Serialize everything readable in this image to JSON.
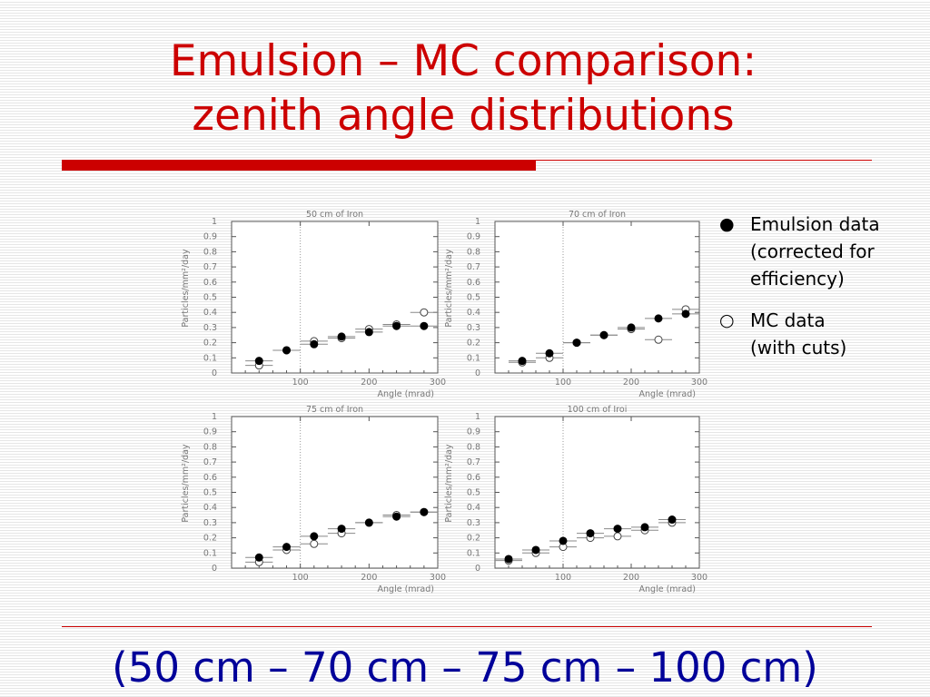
{
  "slide": {
    "title_line1": "Emulsion – MC comparison:",
    "title_line2": "zenith angle distributions",
    "subtitle": "(50 cm – 70 cm – 75 cm – 100 cm)"
  },
  "legend": {
    "items": [
      {
        "marker": "●",
        "lines": [
          "Emulsion data",
          "(corrected for",
          "efficiency)"
        ]
      },
      {
        "marker": "○",
        "lines": [
          "MC data",
          "(with cuts)"
        ]
      }
    ]
  },
  "colors": {
    "title": "#cc0000",
    "accent_bar": "#cc0000",
    "subtitle": "#000099"
  },
  "chart_data": [
    {
      "type": "scatter",
      "title": "50 cm of Iron",
      "xlabel": "Angle (mrad)",
      "ylabel": "Particles/mm²/day",
      "xlim": [
        0,
        300
      ],
      "ylim": [
        0,
        1
      ],
      "xticks": [
        100,
        200,
        300
      ],
      "yticks": [
        0,
        0.1,
        0.2,
        0.3,
        0.4,
        0.5,
        0.6,
        0.7,
        0.8,
        0.9,
        1
      ],
      "x_error": 20,
      "series": [
        {
          "name": "Emulsion data",
          "marker": "filled",
          "x": [
            40,
            80,
            120,
            160,
            200,
            240,
            280
          ],
          "y": [
            0.08,
            0.15,
            0.19,
            0.24,
            0.27,
            0.31,
            0.31
          ]
        },
        {
          "name": "MC data",
          "marker": "open",
          "x": [
            40,
            80,
            120,
            160,
            200,
            240,
            280
          ],
          "y": [
            0.05,
            0.15,
            0.21,
            0.23,
            0.29,
            0.32,
            0.4
          ]
        }
      ]
    },
    {
      "type": "scatter",
      "title": "70 cm of Iron",
      "xlabel": "Angle (mrad)",
      "ylabel": "Particles/mm²/day",
      "xlim": [
        0,
        300
      ],
      "ylim": [
        0,
        1
      ],
      "xticks": [
        100,
        200,
        300
      ],
      "yticks": [
        0,
        0.1,
        0.2,
        0.3,
        0.4,
        0.5,
        0.6,
        0.7,
        0.8,
        0.9,
        1
      ],
      "x_error": 20,
      "series": [
        {
          "name": "Emulsion data",
          "marker": "filled",
          "x": [
            40,
            80,
            120,
            160,
            200,
            240,
            280
          ],
          "y": [
            0.08,
            0.13,
            0.2,
            0.25,
            0.3,
            0.36,
            0.39
          ]
        },
        {
          "name": "MC data",
          "marker": "open",
          "x": [
            40,
            80,
            120,
            160,
            200,
            240,
            280
          ],
          "y": [
            0.07,
            0.1,
            0.2,
            0.25,
            0.29,
            0.22,
            0.42
          ]
        }
      ]
    },
    {
      "type": "scatter",
      "title": "75 cm of Iron",
      "xlabel": "Angle (mrad)",
      "ylabel": "Particles/mm²/day",
      "xlim": [
        0,
        300
      ],
      "ylim": [
        0,
        1
      ],
      "xticks": [
        100,
        200,
        300
      ],
      "yticks": [
        0,
        0.1,
        0.2,
        0.3,
        0.4,
        0.5,
        0.6,
        0.7,
        0.8,
        0.9,
        1
      ],
      "x_error": 20,
      "series": [
        {
          "name": "Emulsion data",
          "marker": "filled",
          "x": [
            40,
            80,
            120,
            160,
            200,
            240,
            280
          ],
          "y": [
            0.07,
            0.14,
            0.21,
            0.26,
            0.3,
            0.34,
            0.37
          ]
        },
        {
          "name": "MC data",
          "marker": "open",
          "x": [
            40,
            80,
            120,
            160,
            200,
            240,
            280
          ],
          "y": [
            0.04,
            0.12,
            0.16,
            0.23,
            0.3,
            0.35,
            0.37
          ]
        }
      ]
    },
    {
      "type": "scatter",
      "title": "100 cm of Iroi",
      "xlabel": "Angle (mrad)",
      "ylabel": "Particles/mm²/day",
      "xlim": [
        0,
        300
      ],
      "ylim": [
        0,
        1
      ],
      "xticks": [
        100,
        200,
        300
      ],
      "yticks": [
        0,
        0.1,
        0.2,
        0.3,
        0.4,
        0.5,
        0.6,
        0.7,
        0.8,
        0.9,
        1
      ],
      "x_error": 20,
      "series": [
        {
          "name": "Emulsion data",
          "marker": "filled",
          "x": [
            20,
            60,
            100,
            140,
            180,
            220,
            260
          ],
          "y": [
            0.06,
            0.12,
            0.18,
            0.23,
            0.26,
            0.27,
            0.32
          ]
        },
        {
          "name": "MC data",
          "marker": "open",
          "x": [
            20,
            60,
            100,
            140,
            180,
            220,
            260
          ],
          "y": [
            0.05,
            0.1,
            0.14,
            0.2,
            0.21,
            0.25,
            0.3
          ]
        }
      ]
    }
  ]
}
